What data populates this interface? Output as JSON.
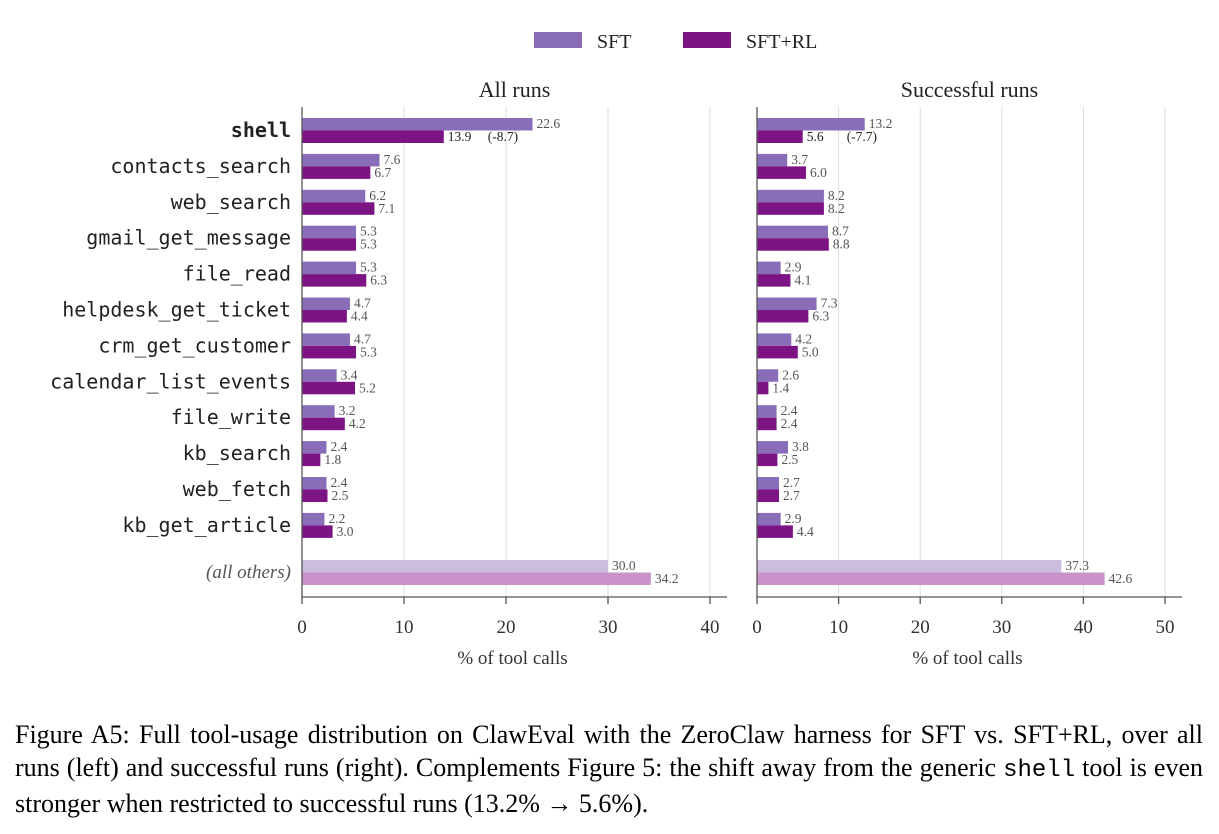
{
  "colors": {
    "sft": "#8a6db8",
    "sft_rl": "#7c1483",
    "others_sft": "#ccbcdf",
    "others_sft_rl": "#c993c9",
    "grid": "#dddddd",
    "axis": "#555555",
    "label_text": "#555555",
    "tick_text": "#333333"
  },
  "chart_data": [
    {
      "type": "bar",
      "orientation": "horizontal",
      "title": "All runs",
      "xlabel": "% of tool calls",
      "xlim": [
        0,
        42
      ],
      "xticks": [
        0,
        10,
        20,
        30,
        40
      ],
      "grid": true,
      "legend_position": "top-center",
      "categories": [
        "shell",
        "contacts_search",
        "web_search",
        "gmail_get_message",
        "file_read",
        "helpdesk_get_ticket",
        "crm_get_customer",
        "calendar_list_events",
        "file_write",
        "kb_search",
        "web_fetch",
        "kb_get_article"
      ],
      "series": [
        {
          "name": "SFT",
          "values": [
            22.6,
            7.6,
            6.2,
            5.3,
            5.3,
            4.7,
            4.7,
            3.4,
            3.2,
            2.4,
            2.4,
            2.2
          ]
        },
        {
          "name": "SFT+RL",
          "values": [
            13.9,
            6.7,
            7.1,
            5.3,
            6.3,
            4.4,
            5.3,
            5.2,
            4.2,
            1.8,
            2.5,
            3.0
          ]
        }
      ],
      "others": {
        "label": "(all others)",
        "sft": 30.0,
        "sft_rl": 34.2
      },
      "annotation": {
        "category": "shell",
        "text": "(-8.7)"
      }
    },
    {
      "type": "bar",
      "orientation": "horizontal",
      "title": "Successful runs",
      "xlabel": "% of tool calls",
      "xlim": [
        0,
        52
      ],
      "xticks": [
        0,
        10,
        20,
        30,
        40,
        50
      ],
      "grid": true,
      "legend_position": "top-center",
      "categories": [
        "shell",
        "contacts_search",
        "web_search",
        "gmail_get_message",
        "file_read",
        "helpdesk_get_ticket",
        "crm_get_customer",
        "calendar_list_events",
        "file_write",
        "kb_search",
        "web_fetch",
        "kb_get_article"
      ],
      "series": [
        {
          "name": "SFT",
          "values": [
            13.2,
            3.7,
            8.2,
            8.7,
            2.9,
            7.3,
            4.2,
            2.6,
            2.4,
            3.8,
            2.7,
            2.9
          ]
        },
        {
          "name": "SFT+RL",
          "values": [
            5.6,
            6.0,
            8.2,
            8.8,
            4.1,
            6.3,
            5.0,
            1.4,
            2.4,
            2.5,
            2.7,
            4.4
          ]
        }
      ],
      "others": {
        "label": "(all others)",
        "sft": 37.3,
        "sft_rl": 42.6
      },
      "annotation": {
        "category": "shell",
        "text": "(-7.7)"
      }
    }
  ],
  "legend": {
    "sft": "SFT",
    "sft_rl": "SFT+RL"
  },
  "caption": {
    "part1": "Figure A5:  Full tool-usage distribution on ClawEval with the ZeroClaw harness for SFT vs. SFT+RL, over all runs (left) and successful runs (right).  Complements Figure 5:  the shift away from the generic ",
    "code": "shell",
    "part2": " tool is even stronger when restricted to successful runs (13.2% → 5.6%)."
  }
}
